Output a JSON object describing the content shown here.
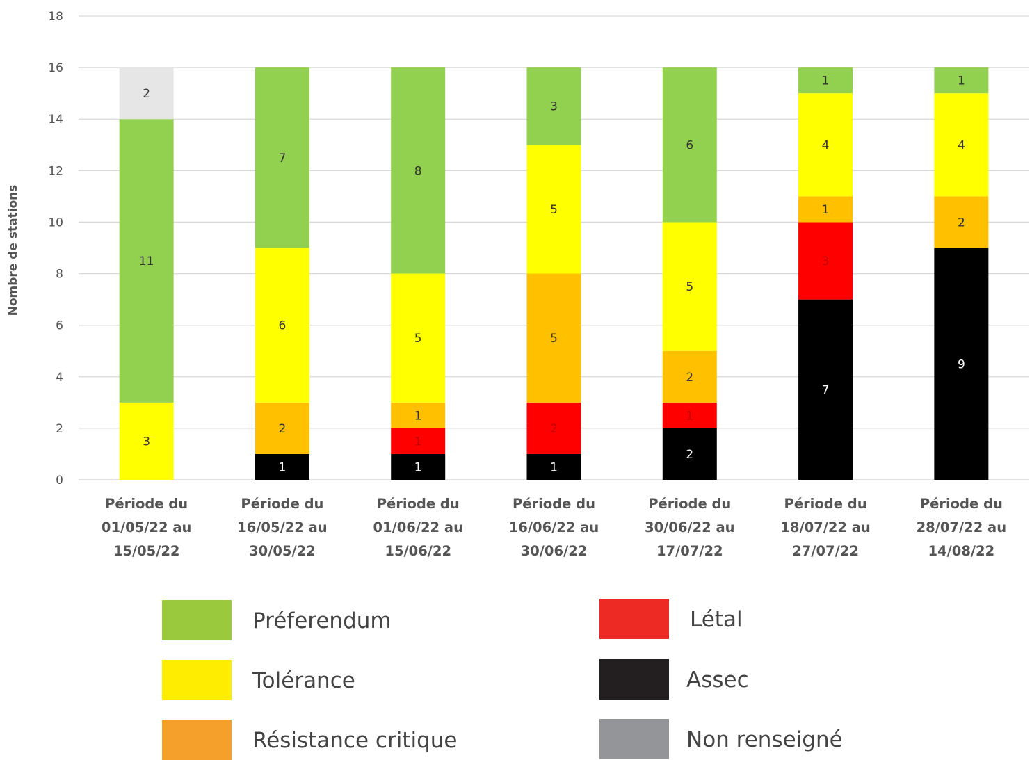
{
  "chart_data": {
    "type": "bar",
    "stacked": true,
    "title": "",
    "xlabel": "",
    "ylabel": "Nombre de stations",
    "ylim": [
      0,
      18
    ],
    "yticks": [
      0,
      2,
      4,
      6,
      8,
      10,
      12,
      14,
      16,
      18
    ],
    "grid": true,
    "legend_position": "bottom",
    "categories": [
      [
        "Période du",
        "01/05/22 au",
        "15/05/22"
      ],
      [
        "Période du",
        "16/05/22 au",
        "30/05/22"
      ],
      [
        "Période du",
        "01/06/22 au",
        "15/06/22"
      ],
      [
        "Période du",
        "16/06/22 au",
        "30/06/22"
      ],
      [
        "Période du",
        "30/06/22 au",
        "17/07/22"
      ],
      [
        "Période du",
        "18/07/22 au",
        "27/07/22"
      ],
      [
        "Période du",
        "28/07/22 au",
        "14/08/22"
      ]
    ],
    "series": [
      {
        "name": "Assec",
        "color": "#000000",
        "legend_color": "#231f20",
        "label_color": "#ffffff",
        "values": [
          0,
          1,
          1,
          1,
          2,
          7,
          9
        ]
      },
      {
        "name": "Létal",
        "color": "#ff0000",
        "legend_color": "#ee2a24",
        "label_color": "#c00000",
        "values": [
          0,
          0,
          1,
          2,
          1,
          3,
          0
        ]
      },
      {
        "name": "Résistance critique",
        "color": "#ffc000",
        "legend_color": "#f5a02a",
        "label_color": "#333333",
        "values": [
          0,
          2,
          1,
          5,
          2,
          1,
          2
        ]
      },
      {
        "name": "Tolérance",
        "color": "#ffff00",
        "legend_color": "#ffed00",
        "label_color": "#333333",
        "values": [
          3,
          6,
          5,
          5,
          5,
          4,
          4
        ]
      },
      {
        "name": "Préferendum",
        "color": "#92d050",
        "legend_color": "#9ac93e",
        "label_color": "#333333",
        "values": [
          11,
          7,
          8,
          3,
          6,
          1,
          1
        ]
      },
      {
        "name": "Non renseigné",
        "color": "#e7e6e6",
        "legend_color": "#939598",
        "label_color": "#333333",
        "values": [
          2,
          0,
          0,
          0,
          0,
          0,
          0
        ]
      }
    ]
  },
  "legend": {
    "items": [
      {
        "label": "Préferendum",
        "series": 4
      },
      {
        "label": "Tolérance",
        "series": 3
      },
      {
        "label": "Résistance critique",
        "series": 2
      },
      {
        "label": "Létal",
        "series": 1
      },
      {
        "label": "Assec",
        "series": 0
      },
      {
        "label": "Non renseigné",
        "series": 5
      }
    ]
  }
}
